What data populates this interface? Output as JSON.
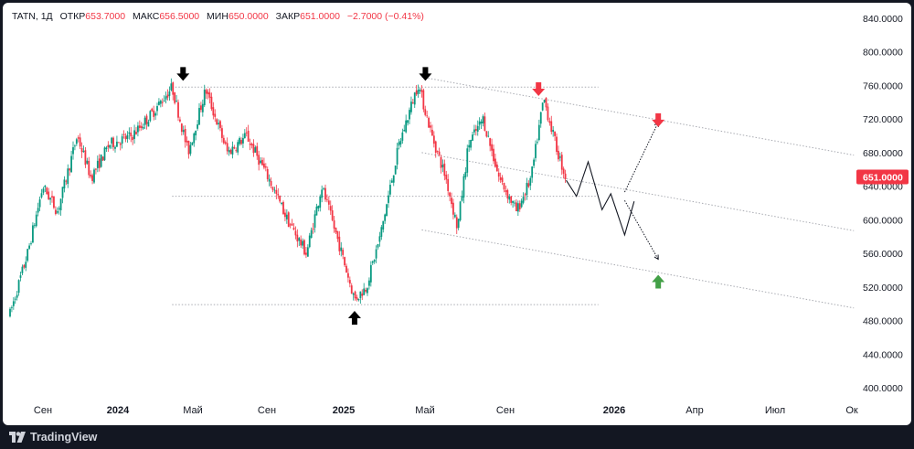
{
  "header": {
    "symbol": "TATN, 1Д",
    "open_label": "ОТКР",
    "open_value": "653.7000",
    "high_label": "МАКС",
    "high_value": "656.5000",
    "low_label": "МИН",
    "low_value": "650.0000",
    "close_label": "ЗАКР",
    "close_value": "651.0000",
    "change": "−2.7000 (−0.41%)"
  },
  "brand": "TradingView",
  "colors": {
    "up": "#089981",
    "down": "#f23645",
    "arrow_black": "#000000",
    "arrow_red": "#f23645",
    "arrow_green": "#43a047"
  },
  "chart_data": {
    "type": "candlestick",
    "price_axis": {
      "ticks": [
        "840.0000",
        "800.0000",
        "760.0000",
        "720.0000",
        "680.0000",
        "640.0000",
        "600.0000",
        "560.0000",
        "520.0000",
        "480.0000",
        "440.0000",
        "400.0000"
      ],
      "range": [
        400,
        840
      ]
    },
    "time_axis": {
      "ticks": [
        {
          "label": "Сен",
          "bold": false
        },
        {
          "label": "2024",
          "bold": true
        },
        {
          "label": "Май",
          "bold": false
        },
        {
          "label": "Сен",
          "bold": false
        },
        {
          "label": "2025",
          "bold": true
        },
        {
          "label": "Май",
          "bold": false
        },
        {
          "label": "Сен",
          "bold": false
        },
        {
          "label": "2026",
          "bold": true
        },
        {
          "label": "Апр",
          "bold": false
        },
        {
          "label": "Июл",
          "bold": false
        },
        {
          "label": "Ок",
          "bold": false
        }
      ]
    },
    "last_price_label": "651.0000",
    "last_price": 651,
    "price_path": [
      {
        "t": "2023-08-01",
        "p": 488
      },
      {
        "t": "2023-08-25",
        "p": 560
      },
      {
        "t": "2023-09-15",
        "p": 640
      },
      {
        "t": "2023-10-05",
        "p": 610
      },
      {
        "t": "2023-11-01",
        "p": 700
      },
      {
        "t": "2023-11-20",
        "p": 650
      },
      {
        "t": "2023-12-15",
        "p": 690
      },
      {
        "t": "2024-01-15",
        "p": 700
      },
      {
        "t": "2024-02-10",
        "p": 725
      },
      {
        "t": "2024-03-10",
        "p": 758
      },
      {
        "t": "2024-04-01",
        "p": 680
      },
      {
        "t": "2024-04-25",
        "p": 755
      },
      {
        "t": "2024-05-25",
        "p": 680
      },
      {
        "t": "2024-06-20",
        "p": 700
      },
      {
        "t": "2024-07-20",
        "p": 650
      },
      {
        "t": "2024-08-15",
        "p": 600
      },
      {
        "t": "2024-09-10",
        "p": 560
      },
      {
        "t": "2024-10-01",
        "p": 640
      },
      {
        "t": "2024-10-25",
        "p": 570
      },
      {
        "t": "2024-11-15",
        "p": 505
      },
      {
        "t": "2024-12-01",
        "p": 520
      },
      {
        "t": "2024-12-20",
        "p": 580
      },
      {
        "t": "2025-01-15",
        "p": 690
      },
      {
        "t": "2025-02-10",
        "p": 762
      },
      {
        "t": "2025-03-01",
        "p": 700
      },
      {
        "t": "2025-03-20",
        "p": 650
      },
      {
        "t": "2025-04-05",
        "p": 590
      },
      {
        "t": "2025-04-20",
        "p": 690
      },
      {
        "t": "2025-05-10",
        "p": 720
      },
      {
        "t": "2025-06-01",
        "p": 650
      },
      {
        "t": "2025-06-25",
        "p": 610
      },
      {
        "t": "2025-07-15",
        "p": 650
      },
      {
        "t": "2025-08-01",
        "p": 745
      },
      {
        "t": "2025-08-20",
        "p": 681
      },
      {
        "t": "2025-08-31",
        "p": 651
      }
    ],
    "drawings": {
      "horizontal_levels": [
        758,
        628,
        499
      ],
      "channel_lines": [
        {
          "t1": "2025-02-15",
          "p1": 770,
          "t2": "2026-09-30",
          "p2": 677
        },
        {
          "t1": "2025-02-15",
          "p1": 680,
          "t2": "2026-09-30",
          "p2": 587
        },
        {
          "t1": "2025-02-15",
          "p1": 588,
          "t2": "2026-09-30",
          "p2": 495
        }
      ],
      "forecast_path": [
        {
          "t": "2025-09-01",
          "p": 647
        },
        {
          "t": "2025-09-15",
          "p": 628
        },
        {
          "t": "2025-10-01",
          "p": 669
        },
        {
          "t": "2025-10-20",
          "p": 612
        },
        {
          "t": "2025-11-01",
          "p": 631
        },
        {
          "t": "2025-11-20",
          "p": 582
        },
        {
          "t": "2025-12-03",
          "p": 622
        }
      ],
      "dotted_arrows": [
        {
          "t1": "2025-11-20",
          "p1": 633,
          "t2": "2026-01-05",
          "p2": 716
        },
        {
          "t1": "2025-11-20",
          "p1": 623,
          "t2": "2026-01-05",
          "p2": 553
        }
      ],
      "markers": [
        {
          "t": "2024-03-25",
          "p": 772,
          "dir": "down",
          "color": "black"
        },
        {
          "t": "2025-02-20",
          "p": 772,
          "dir": "down",
          "color": "black"
        },
        {
          "t": "2025-07-25",
          "p": 754,
          "dir": "down",
          "color": "red"
        },
        {
          "t": "2026-01-05",
          "p": 717,
          "dir": "down",
          "color": "red"
        },
        {
          "t": "2024-11-15",
          "p": 485,
          "dir": "up",
          "color": "black"
        },
        {
          "t": "2026-01-05",
          "p": 528,
          "dir": "up",
          "color": "green"
        }
      ]
    }
  }
}
